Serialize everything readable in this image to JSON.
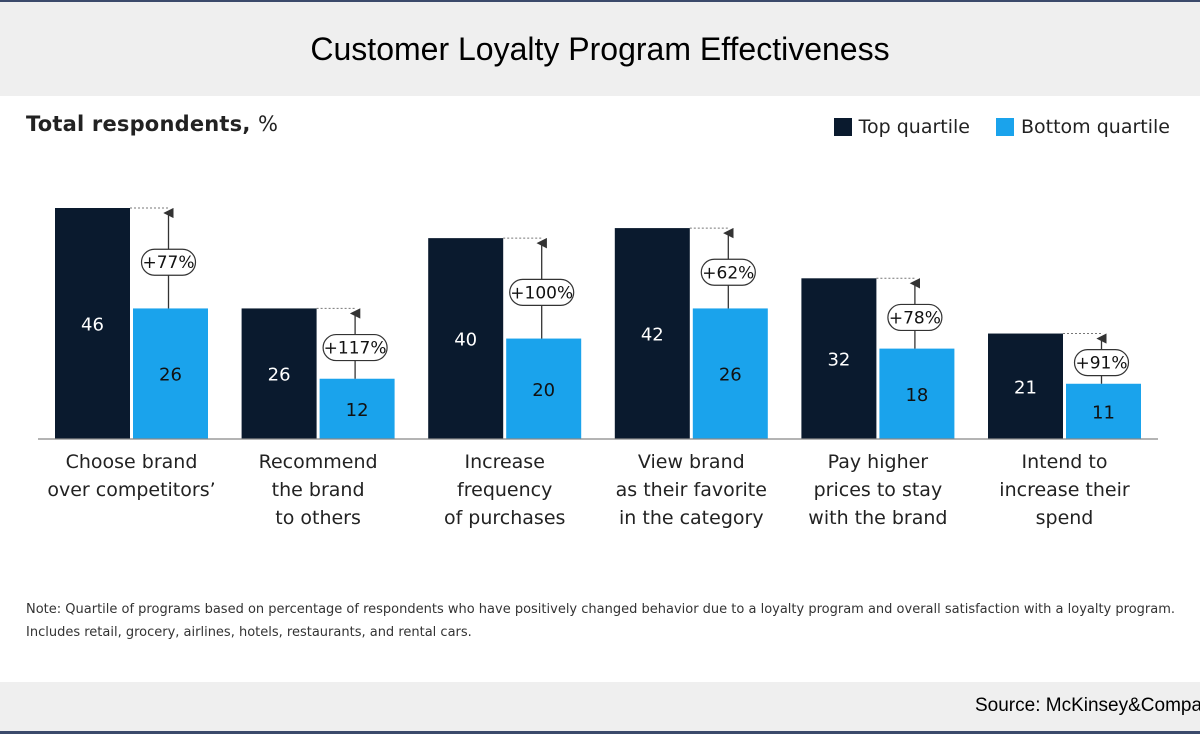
{
  "page": {
    "title": "Customer Loyalty Program Effectiveness",
    "note": "Note: Quartile of programs based on percentage of respondents who have positively changed behavior due to a loyalty program and overall satisfaction with a loyalty program. Includes retail, grocery, airlines, hotels, restaurants, and rental cars.",
    "source": "Source: McKinsey&Company"
  },
  "chart_data": {
    "type": "bar",
    "title": "Customer Loyalty Program Effectiveness",
    "subtitle": "Total respondents,",
    "unit": "%",
    "categories": [
      [
        "Choose brand",
        "over competitors’"
      ],
      [
        "Recommend",
        "the brand",
        "to others"
      ],
      [
        "Increase",
        "frequency",
        "of purchases"
      ],
      [
        "View brand",
        "as their favorite",
        "in the category"
      ],
      [
        "Pay higher",
        "prices to stay",
        "with the brand"
      ],
      [
        "Intend to",
        "increase their",
        "spend"
      ]
    ],
    "series": [
      {
        "name": "Top quartile",
        "color": "#0a1a2e",
        "values": [
          46,
          26,
          40,
          42,
          32,
          21
        ]
      },
      {
        "name": "Bottom quartile",
        "color": "#1aa3ec",
        "values": [
          26,
          12,
          20,
          26,
          18,
          11
        ]
      }
    ],
    "uplift_labels": [
      "+77%",
      "+117%",
      "+100%",
      "+62%",
      "+78%",
      "+91%"
    ],
    "ylim": [
      0,
      46
    ],
    "legend": "top-right",
    "grid": false
  }
}
